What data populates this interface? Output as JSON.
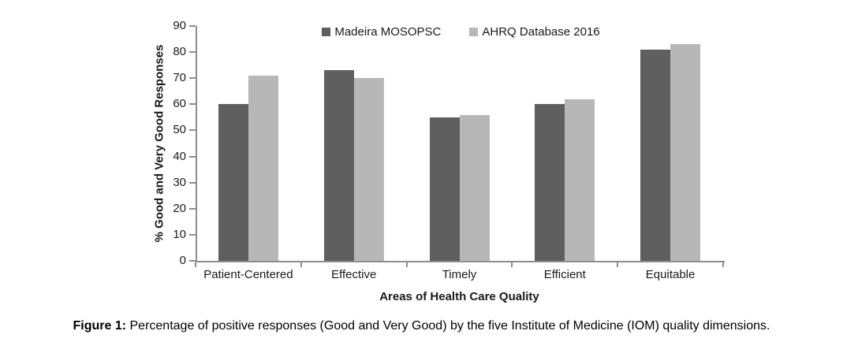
{
  "chart_data": {
    "type": "bar",
    "title": "",
    "categories": [
      "Patient-Centered",
      "Effective",
      "Timely",
      "Efficient",
      "Equitable"
    ],
    "series": [
      {
        "name": "Madeira MOSOPSC",
        "color": "#5f5f5f",
        "values": [
          60,
          73,
          55,
          60,
          81
        ]
      },
      {
        "name": "AHRQ Database 2016",
        "color": "#b7b7b7",
        "values": [
          71,
          70,
          56,
          62,
          83
        ]
      }
    ],
    "xlabel": "Areas of Health Care Quality",
    "ylabel": "% Good and Very Good Responses",
    "ylim": [
      0,
      90
    ],
    "ytick_step": 10,
    "grid": false,
    "legend_position": "top-center",
    "axis_color": "#8e8e8e"
  },
  "caption": {
    "prefix": "Figure 1:",
    "text": " Percentage of positive responses (Good and Very Good) by the five Institute of Medicine (IOM) quality dimensions."
  }
}
